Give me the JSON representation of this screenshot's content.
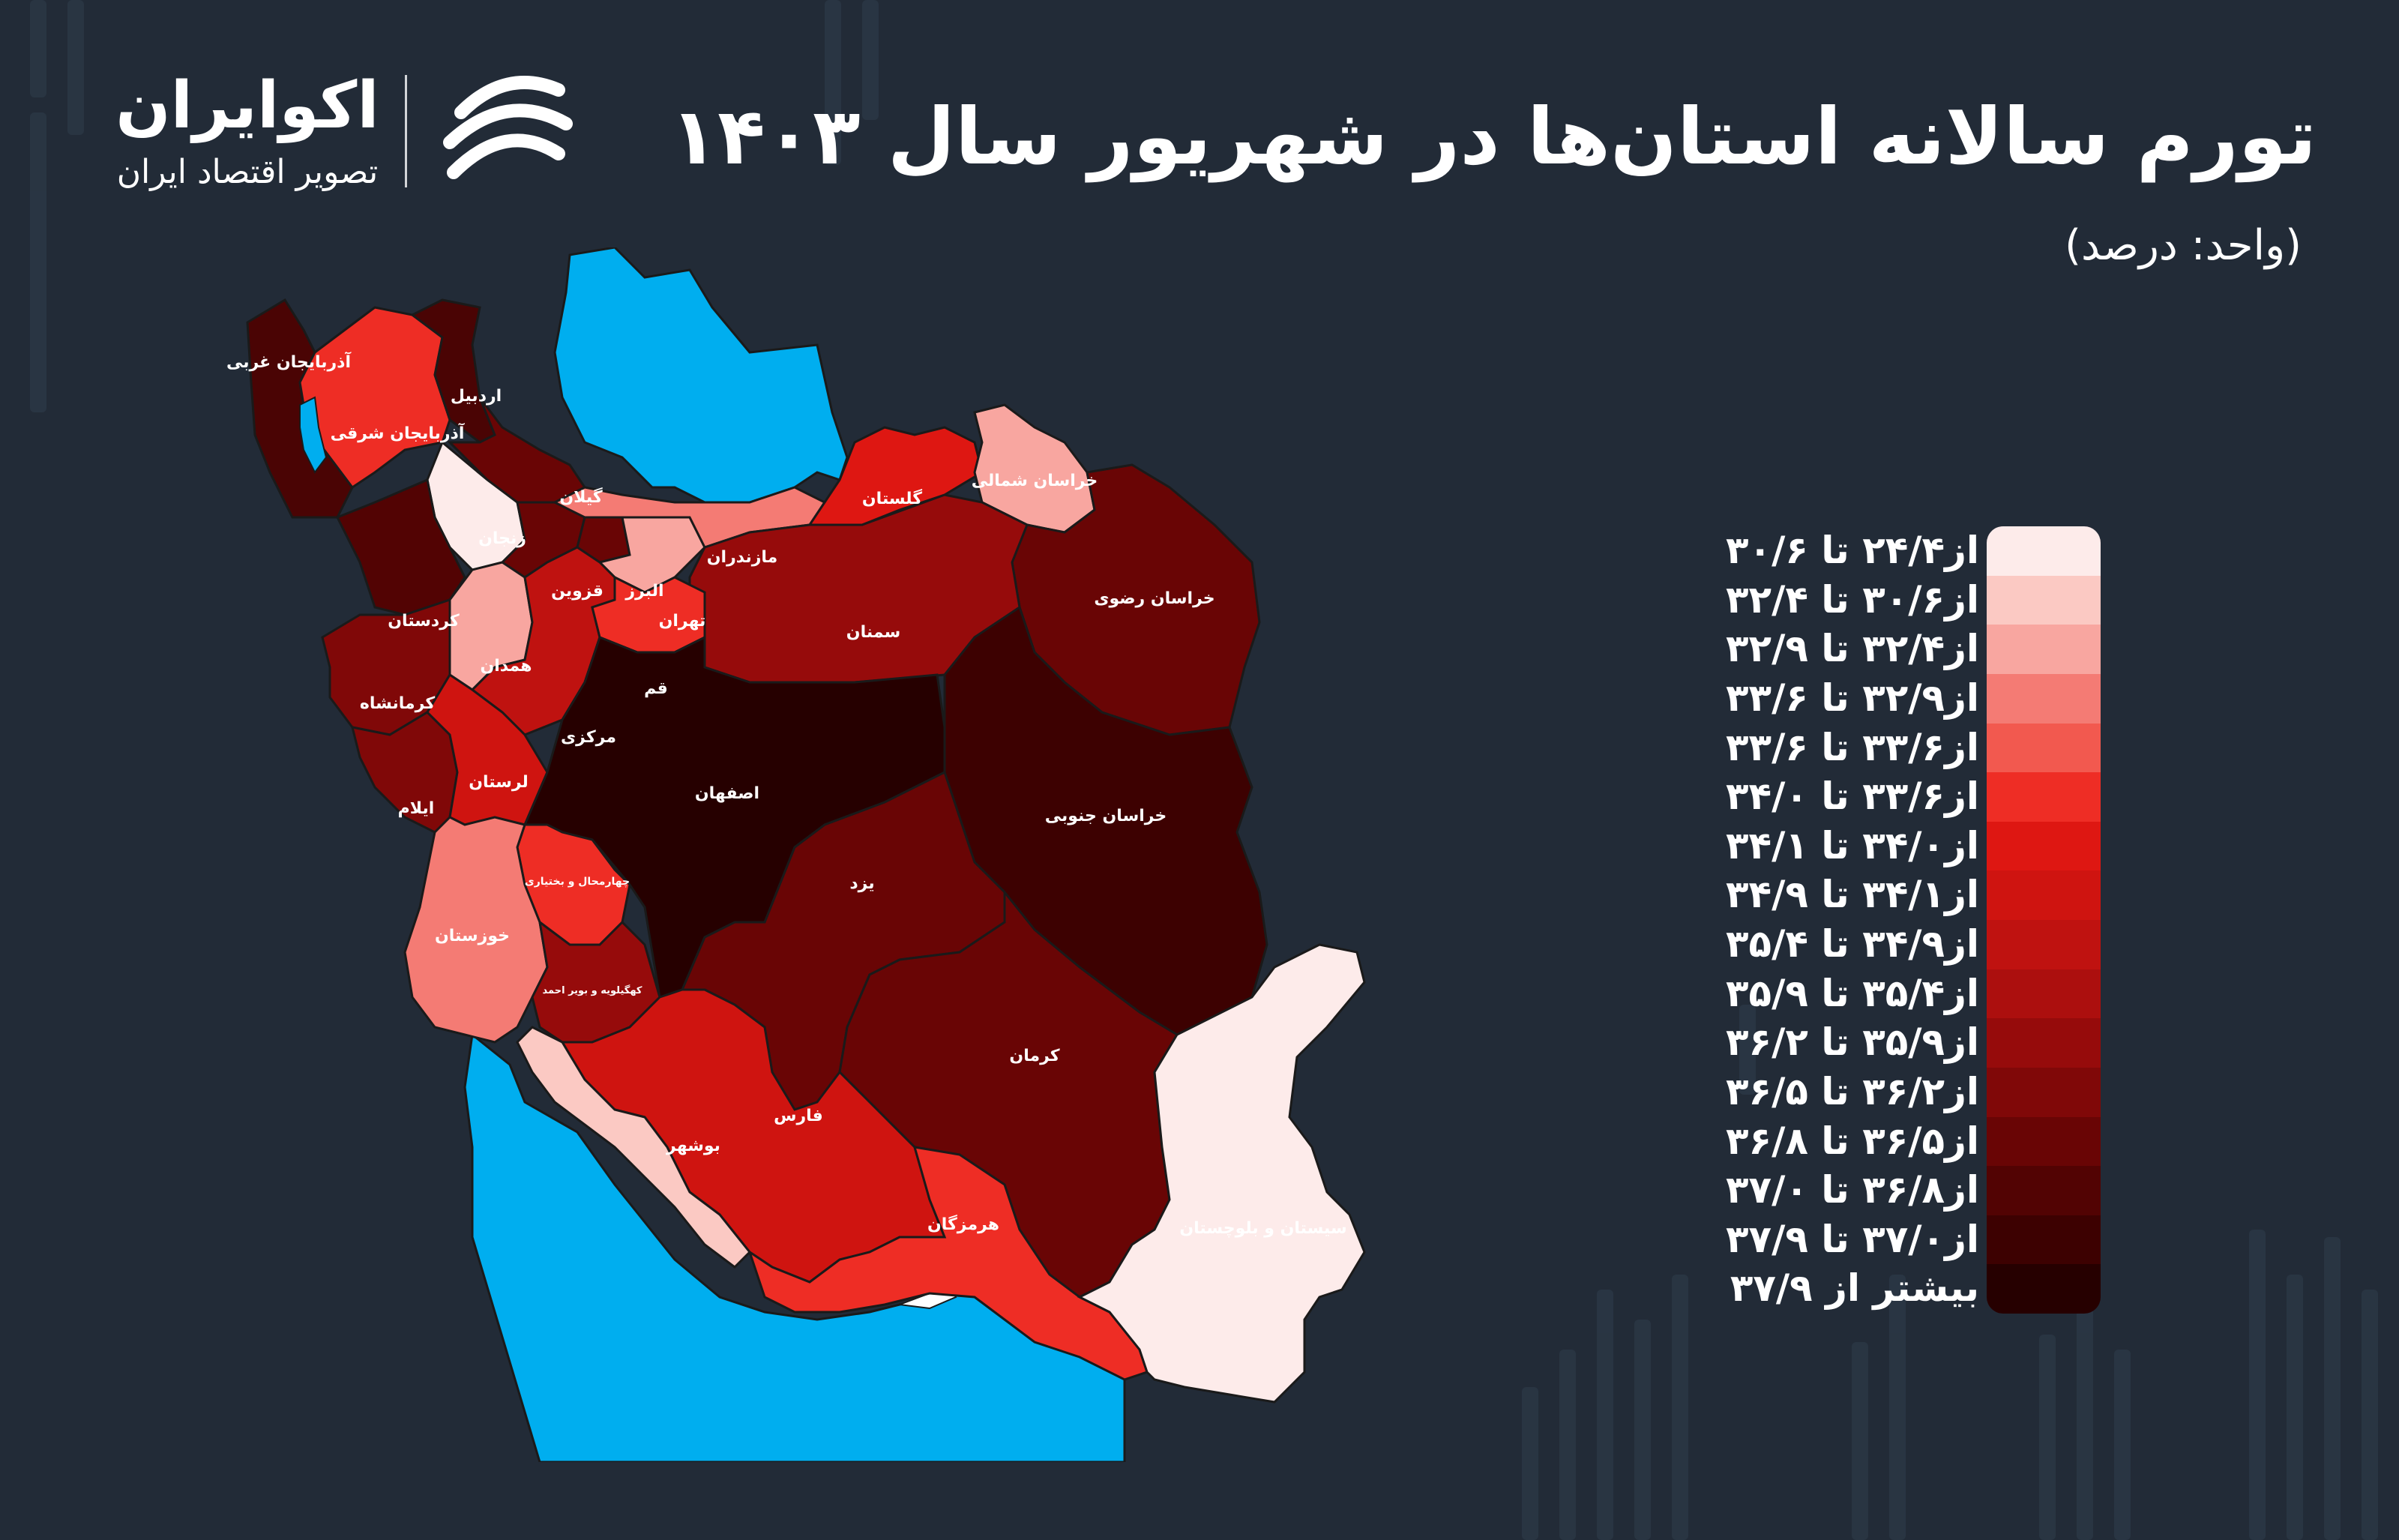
{
  "brand": {
    "name": "اکوایران",
    "tagline": "تصویر اقتصاد ایران"
  },
  "title": "تورم سالانه استان‌ها در شهریور سال ۱۴۰۳",
  "subtitle": "(واحد: درصد)",
  "colors": {
    "background": "#222b37",
    "water": "#00aeef",
    "border": "#1a1a1a"
  },
  "legend": {
    "items": [
      {
        "label": "از۲۴/۴ تا ۳۰/۶",
        "color": "#fdebea"
      },
      {
        "label": "از۳۰/۶ تا ۳۲/۴",
        "color": "#fbc9c3"
      },
      {
        "label": "از۳۲/۴ تا ۳۲/۹",
        "color": "#f8a6a0"
      },
      {
        "label": "از۳۲/۹ تا ۳۳/۶",
        "color": "#f47b74"
      },
      {
        "label": "از۳۳/۶ تا ۳۳/۶",
        "color": "#f2594f"
      },
      {
        "label": "از۳۳/۶ تا ۳۴/۰",
        "color": "#ee2d25"
      },
      {
        "label": "از۳۴/۰ تا ۳۴/۱",
        "color": "#de1712"
      },
      {
        "label": "از۳۴/۱ تا ۳۴/۹",
        "color": "#cf1410"
      },
      {
        "label": "از۳۴/۹ تا ۳۵/۴",
        "color": "#bf1210"
      },
      {
        "label": "از۳۵/۴ تا ۳۵/۹",
        "color": "#ac0f0e"
      },
      {
        "label": "از۳۵/۹ تا ۳۶/۲",
        "color": "#960b0b"
      },
      {
        "label": "از۳۶/۲ تا ۳۶/۵",
        "color": "#800808"
      },
      {
        "label": "از۳۶/۵ تا ۳۶/۸",
        "color": "#690505"
      },
      {
        "label": "از۳۶/۸ تا ۳۷/۰",
        "color": "#520303"
      },
      {
        "label": "از۳۷/۰ تا ۳۷/۹",
        "color": "#3d0101"
      },
      {
        "label": "بیشتر از ۳۷/۹",
        "color": "#260000"
      }
    ]
  },
  "provinces": [
    {
      "name": "آذربایجان غربی",
      "color": "#4a0404"
    },
    {
      "name": "اردبیل",
      "color": "#4a0404"
    },
    {
      "name": "آذربایجان شرقی",
      "color": "#ee2d25"
    },
    {
      "name": "گیلان",
      "color": "#690505"
    },
    {
      "name": "زنجان",
      "color": "#fdebea"
    },
    {
      "name": "مازندران",
      "color": "#f47b74"
    },
    {
      "name": "گلستان",
      "color": "#de1712"
    },
    {
      "name": "خراسان شمالی",
      "color": "#f8a6a0"
    },
    {
      "name": "خراسان رضوی",
      "color": "#690505"
    },
    {
      "name": "کردستان",
      "color": "#520303"
    },
    {
      "name": "قزوین",
      "color": "#690505"
    },
    {
      "name": "البرز",
      "color": "#690505"
    },
    {
      "name": "تهران",
      "color": "#f8a6a0"
    },
    {
      "name": "سمنان",
      "color": "#960b0b"
    },
    {
      "name": "همدان",
      "color": "#f8a6a0"
    },
    {
      "name": "قم",
      "color": "#ee2d25"
    },
    {
      "name": "کرمانشاه",
      "color": "#800808"
    },
    {
      "name": "مرکزی",
      "color": "#bf1210"
    },
    {
      "name": "اصفهان",
      "color": "#260000"
    },
    {
      "name": "خراسان جنوبی",
      "color": "#3d0101"
    },
    {
      "name": "لرستان",
      "color": "#cf1410"
    },
    {
      "name": "ایلام",
      "color": "#800808"
    },
    {
      "name": "چهارمحال و بختیاری",
      "color": "#ee2d25"
    },
    {
      "name": "یزد",
      "color": "#690505"
    },
    {
      "name": "خوزستان",
      "color": "#f47b74"
    },
    {
      "name": "کهگیلویه و بویر احمد",
      "color": "#960b0b"
    },
    {
      "name": "کرمان",
      "color": "#690505"
    },
    {
      "name": "فارس",
      "color": "#cf1410"
    },
    {
      "name": "بوشهر",
      "color": "#fbc9c3"
    },
    {
      "name": "هرمزگان",
      "color": "#ee2d25"
    },
    {
      "name": "سیستان و بلوچستان",
      "color": "#fdebea"
    }
  ]
}
